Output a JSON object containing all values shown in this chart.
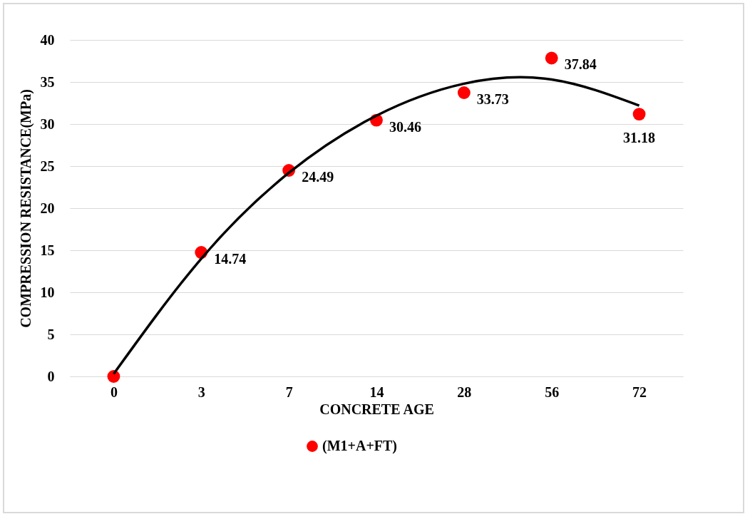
{
  "chart_data": {
    "type": "scatter",
    "xlabel": "CONCRETE AGE",
    "ylabel": "COMPRESSION RESISTANCE(MPa)",
    "categories": [
      "0",
      "3",
      "7",
      "14",
      "28",
      "56",
      "72"
    ],
    "series": [
      {
        "name": "(M1+A+FT)",
        "color": "#ff0000",
        "marker": "circle",
        "values": [
          0,
          14.74,
          24.49,
          30.46,
          33.73,
          37.84,
          31.18
        ],
        "value_labels": [
          null,
          "14.74",
          "24.49",
          "30.46",
          "33.73",
          "37.84",
          "31.18"
        ]
      },
      {
        "type": "line",
        "color": "#000000",
        "marker": "none",
        "values": [
          0.3,
          14.0,
          24.2,
          31.0,
          34.8,
          35.3,
          32.2
        ]
      }
    ],
    "ylim": [
      0,
      40
    ],
    "yticks": [
      0,
      5,
      10,
      15,
      20,
      25,
      30,
      35,
      40
    ],
    "grid": "y",
    "legend": "bottom",
    "line_style": "solid"
  }
}
